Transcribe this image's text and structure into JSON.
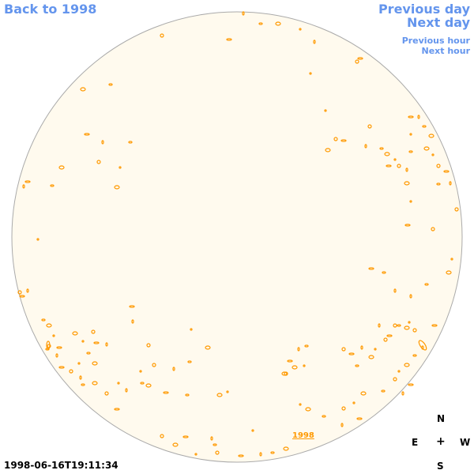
{
  "nav": {
    "back_label": "Back to 1998",
    "prev_day_label": "Previous day",
    "next_day_label": "Next day",
    "prev_hour_label": "Previous hour",
    "next_hour_label": "Next hour"
  },
  "disk": {
    "year_label": "1998",
    "fill_color": "#fffaee",
    "border_color": "#aaaaaa",
    "contour_color": "#ff9900"
  },
  "timestamp": "1998-06-16T19:11:34",
  "compass": {
    "n": "N",
    "e": "E",
    "plus": "+",
    "w": "W",
    "s": "S"
  },
  "colors": {
    "link": "#6495ed",
    "text": "#000000"
  }
}
